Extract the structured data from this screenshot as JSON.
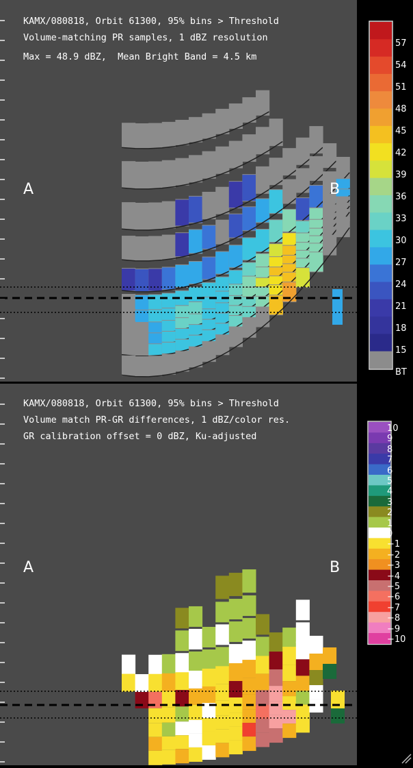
{
  "top_panel": {
    "header_lines": [
      "KAMX/080818, Orbit 61300, 95% bins > Threshold",
      "Volume-matching PR samples, 1 dBZ resolution",
      "Max = 48.9 dBZ,  Mean Bright Band = 4.5 km"
    ],
    "label_a": "A",
    "label_b": "B",
    "colorbar_ticks": [
      "57",
      "54",
      "51",
      "48",
      "45",
      "42",
      "39",
      "36",
      "33",
      "30",
      "27",
      "24",
      "21",
      "18",
      "15",
      "BT"
    ]
  },
  "bottom_panel": {
    "header_lines": [
      "KAMX/080818, Orbit 61300, 95% bins > Threshold",
      "Volume match PR-GR differences, 1 dBZ/color res.",
      "GR calibration offset = 0 dBZ, Ku-adjusted"
    ],
    "label_a": "A",
    "label_b": "B",
    "colorbar_ticks": [
      "10",
      "9",
      "8",
      "7",
      "6",
      "5",
      "4",
      "3",
      "2",
      "1",
      "0",
      "−1",
      "−2",
      "−3",
      "−4",
      "−5",
      "−6",
      "−7",
      "−8",
      "−9",
      "−10"
    ]
  },
  "colors": {
    "panel_bg": "#4a4a4a",
    "beam_gray": "#8c8c8c",
    "top_scale": [
      "#8c8c8c",
      "#2a2a8a",
      "#34349c",
      "#3a3aa8",
      "#3a55c0",
      "#3a74d6",
      "#32a8e8",
      "#3cc4e0",
      "#6ad2c6",
      "#86d8b4",
      "#a6d688",
      "#d6e23a",
      "#f2e020",
      "#f4c020",
      "#f0a030",
      "#ee8a3c",
      "#ea6a34",
      "#e44a2c",
      "#d62a24",
      "#c0181c"
    ],
    "diff_scale": [
      "#e040a0",
      "#f07ec0",
      "#f7a0a0",
      "#f04030",
      "#f47060",
      "#c87070",
      "#8a0a18",
      "#f09020",
      "#f4b020",
      "#f8e030",
      "#ffffff",
      "#a6c84a",
      "#8a8a20",
      "#1a6a3a",
      "#1f9a7a",
      "#6cc8c4",
      "#3a6ac8",
      "#3a3aa8",
      "#5a3aa0",
      "#7a3ab0",
      "#9a50c0"
    ]
  }
}
